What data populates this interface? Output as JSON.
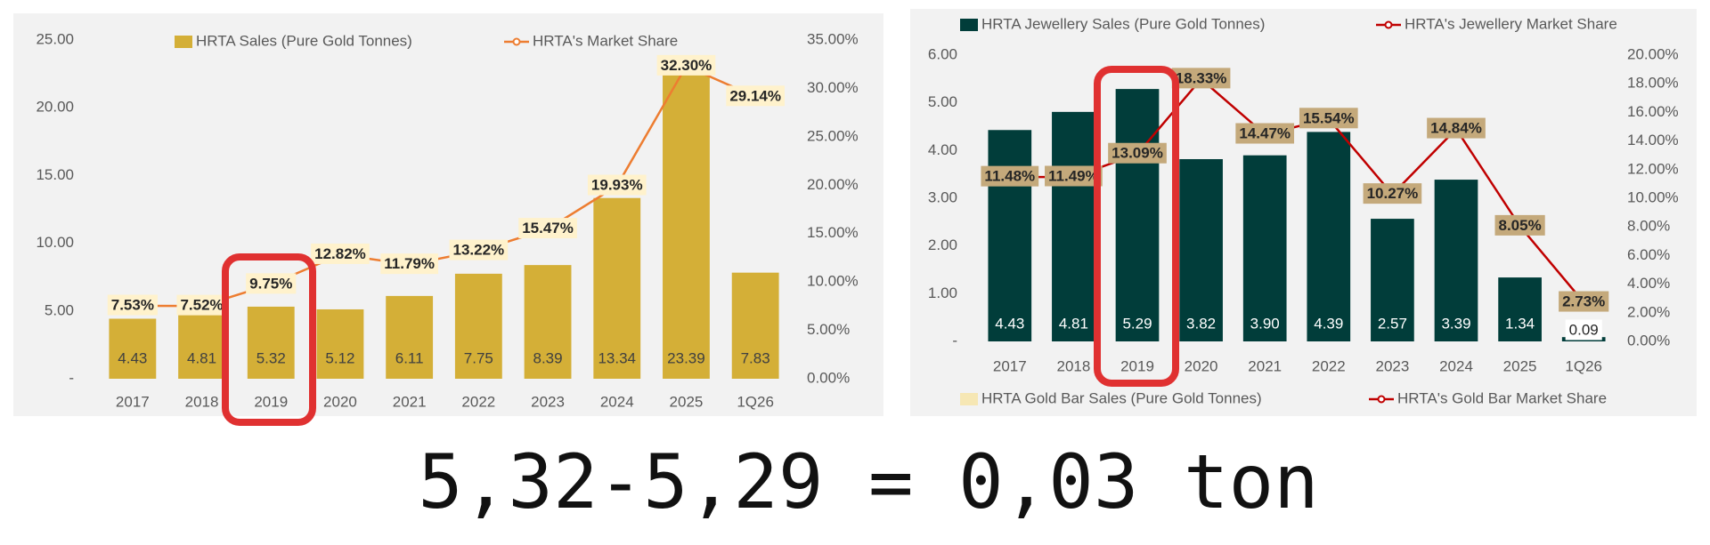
{
  "chart_data": [
    {
      "type": "bar",
      "categories": [
        "2017",
        "2018",
        "2019",
        "2020",
        "2021",
        "2022",
        "2023",
        "2024",
        "2025",
        "1Q26"
      ],
      "series": [
        {
          "name": "HRTA Sales (Pure Gold Tonnes)",
          "color": "#D4AF37",
          "values": [
            4.43,
            4.81,
            5.32,
            5.12,
            6.11,
            7.75,
            8.39,
            13.34,
            23.39,
            7.83
          ]
        },
        {
          "name": "HRTA's Market Share",
          "type": "line",
          "axis": "y2",
          "color": "#ED7D31",
          "values": [
            7.53,
            7.52,
            9.75,
            12.82,
            11.79,
            13.22,
            15.47,
            19.93,
            32.3,
            29.14
          ],
          "value_labels": [
            "7.53%",
            "7.52%",
            "9.75%",
            "12.82%",
            "11.79%",
            "13.22%",
            "15.47%",
            "19.93%",
            "32.30%",
            "29.14%"
          ]
        }
      ],
      "ylim": [
        0,
        25
      ],
      "yticks": [
        {
          "value": 0,
          "label": "-"
        },
        {
          "value": 5,
          "label": "5.00"
        },
        {
          "value": 10,
          "label": "10.00"
        },
        {
          "value": 15,
          "label": "15.00"
        },
        {
          "value": 20,
          "label": "20.00"
        },
        {
          "value": 25,
          "label": "25.00"
        }
      ],
      "y2lim": [
        0,
        35
      ],
      "y2ticks": [
        {
          "value": 0,
          "label": "0.00%"
        },
        {
          "value": 5,
          "label": "5.00%"
        },
        {
          "value": 10,
          "label": "10.00%"
        },
        {
          "value": 15,
          "label": "15.00%"
        },
        {
          "value": 20,
          "label": "20.00%"
        },
        {
          "value": 25,
          "label": "25.00%"
        },
        {
          "value": 30,
          "label": "30.00%"
        },
        {
          "value": 35,
          "label": "35.00%"
        }
      ]
    },
    {
      "type": "bar",
      "categories": [
        "2017",
        "2018",
        "2019",
        "2020",
        "2021",
        "2022",
        "2023",
        "2024",
        "2025",
        "1Q26"
      ],
      "series": [
        {
          "name": "HRTA Jewellery Sales (Pure Gold Tonnes)",
          "color": "#013D3A",
          "values": [
            4.43,
            4.81,
            5.29,
            3.82,
            3.9,
            4.39,
            2.57,
            3.39,
            1.34,
            0.09
          ],
          "value_labels": [
            "4.43",
            "4.81",
            "5.29",
            "3.82",
            "3.90",
            "4.39",
            "2.57",
            "3.39",
            "1.34",
            "0.09"
          ]
        },
        {
          "name": "HRTA's Jewellery Market Share",
          "type": "line",
          "axis": "y2",
          "color": "#C00000",
          "values": [
            11.48,
            11.49,
            13.09,
            18.33,
            14.47,
            15.54,
            10.27,
            14.84,
            8.05,
            2.73
          ],
          "value_labels": [
            "11.48%",
            "11.49%",
            "13.09%",
            "18.33%",
            "14.47%",
            "15.54%",
            "10.27%",
            "14.84%",
            "8.05%",
            "2.73%"
          ]
        },
        {
          "name": "HRTA Gold Bar Sales (Pure Gold Tonnes)",
          "color": "#F6E7B4"
        },
        {
          "name": "HRTA's Gold Bar Market Share",
          "type": "line",
          "color": "#C00000"
        }
      ],
      "ylim": [
        0,
        6
      ],
      "yticks": [
        {
          "value": 0,
          "label": "-"
        },
        {
          "value": 1,
          "label": "1.00"
        },
        {
          "value": 2,
          "label": "2.00"
        },
        {
          "value": 3,
          "label": "3.00"
        },
        {
          "value": 4,
          "label": "4.00"
        },
        {
          "value": 5,
          "label": "5.00"
        },
        {
          "value": 6,
          "label": "6.00"
        }
      ],
      "y2lim": [
        0,
        20
      ],
      "y2ticks": [
        {
          "value": 0,
          "label": "0.00%"
        },
        {
          "value": 2,
          "label": "2.00%"
        },
        {
          "value": 4,
          "label": "4.00%"
        },
        {
          "value": 6,
          "label": "6.00%"
        },
        {
          "value": 8,
          "label": "8.00%"
        },
        {
          "value": 10,
          "label": "10.00%"
        },
        {
          "value": 12,
          "label": "12.00%"
        },
        {
          "value": 14,
          "label": "14.00%"
        },
        {
          "value": 16,
          "label": "16.00%"
        },
        {
          "value": 18,
          "label": "18.00%"
        },
        {
          "value": 20,
          "label": "20.00%"
        }
      ]
    }
  ],
  "annotation": "5,32-5,29 = 0,03 ton"
}
